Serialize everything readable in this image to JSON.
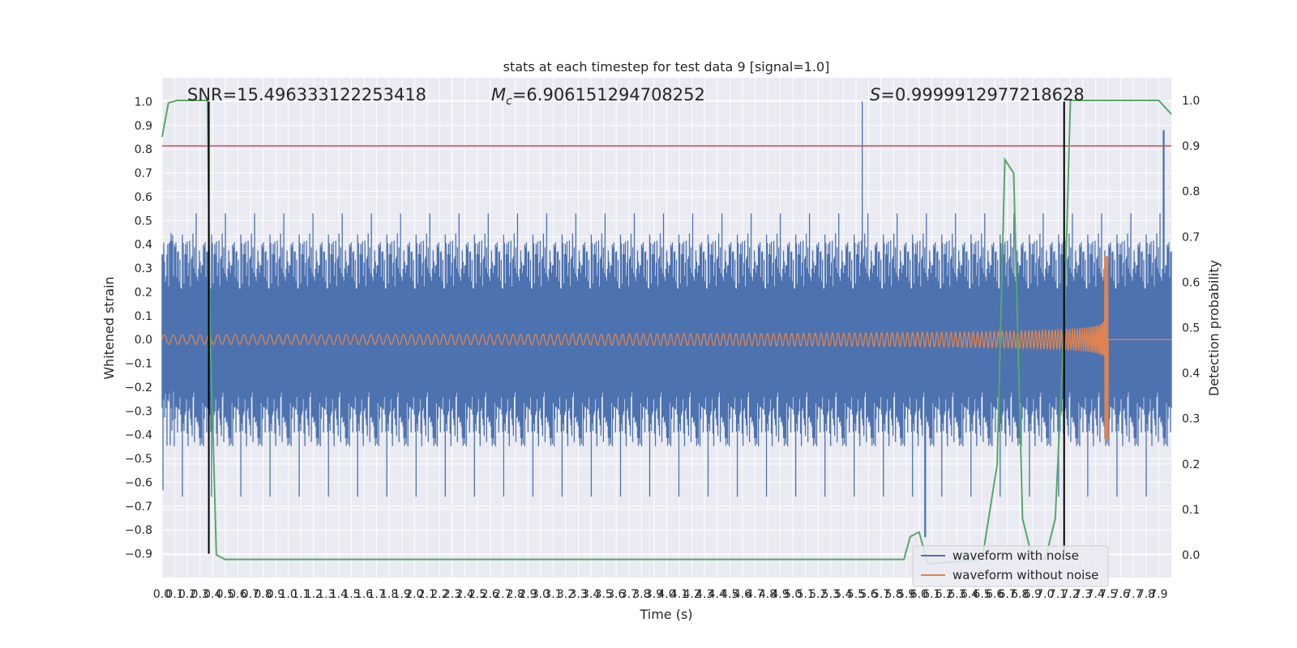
{
  "chart_data": {
    "type": "line",
    "title": "stats at each timestep for test data 9 [signal=1.0]",
    "xlabel": "Time (s)",
    "ylabel": "Whitened strain",
    "y2label": "Detection probability",
    "xlim": [
      0,
      8
    ],
    "ylim": [
      -1.0,
      1.1
    ],
    "y2lim": [
      -0.05,
      1.05
    ],
    "grid": true,
    "legend_position": "lower-right",
    "annotations": {
      "snr": "SNR=15.496333122253418",
      "mc_symbol": "M",
      "mc_sub": "c",
      "mc_value": "=6.906151294708252",
      "s_symbol": "S",
      "s_value": "=0.9999912977218628"
    },
    "threshold_line": {
      "y2": 0.9,
      "color": "#c44e52"
    },
    "vertical_markers": [
      0.37,
      7.15
    ],
    "series": [
      {
        "name": "waveform with noise",
        "color": "#4c72b0",
        "noise_band": [
          -0.45,
          0.45
        ],
        "peak_max": 1.0,
        "peak_min": -0.83
      },
      {
        "name": "waveform without noise",
        "color": "#dd8452",
        "chirp_start": 0.0,
        "chirp_merger": 7.5,
        "start_amplitude": 0.02,
        "peak_amplitude": 0.35,
        "min_at_merger": -0.42
      },
      {
        "color": "#55a868",
        "axis": "right",
        "x": [
          0.0,
          0.05,
          0.12,
          0.2,
          0.3,
          0.36,
          0.38,
          0.43,
          0.5,
          1.0,
          2.0,
          3.0,
          4.0,
          5.0,
          5.88,
          5.93,
          6.0,
          6.07,
          6.5,
          6.62,
          6.68,
          6.75,
          6.82,
          6.9,
          7.0,
          7.08,
          7.15,
          7.2,
          7.5,
          7.9,
          8.0
        ],
        "y": [
          0.92,
          0.995,
          1.0,
          1.0,
          1.0,
          1.0,
          0.5,
          0.0,
          -0.01,
          -0.01,
          -0.01,
          -0.01,
          -0.01,
          -0.01,
          -0.01,
          0.04,
          0.05,
          -0.02,
          -0.01,
          0.2,
          0.87,
          0.84,
          0.08,
          -0.01,
          -0.01,
          0.08,
          0.5,
          1.0,
          1.0,
          1.0,
          0.97
        ]
      }
    ],
    "x_ticks": [
      "0.0",
      "0.1",
      "0.2",
      "0.3",
      "0.4",
      "0.5",
      "0.6",
      "0.7",
      "0.8",
      "0.9",
      "1.0",
      "1.1",
      "1.2",
      "1.3",
      "1.4",
      "1.5",
      "1.6",
      "1.7",
      "1.8",
      "1.9",
      "2.0",
      "2.1",
      "2.2",
      "2.3",
      "2.4",
      "2.5",
      "2.6",
      "2.7",
      "2.8",
      "2.9",
      "3.0",
      "3.1",
      "3.2",
      "3.3",
      "3.4",
      "3.5",
      "3.6",
      "3.7",
      "3.8",
      "3.9",
      "4.0",
      "4.1",
      "4.2",
      "4.3",
      "4.4",
      "4.5",
      "4.6",
      "4.7",
      "4.8",
      "4.9",
      "5.0",
      "5.1",
      "5.2",
      "5.3",
      "5.4",
      "5.5",
      "5.6",
      "5.7",
      "5.8",
      "5.9",
      "6.0",
      "6.1",
      "6.2",
      "6.3",
      "6.4",
      "6.5",
      "6.6",
      "6.7",
      "6.8",
      "6.9",
      "7.0",
      "7.1",
      "7.2",
      "7.3",
      "7.4",
      "7.5",
      "7.6",
      "7.7",
      "7.8",
      "7.9"
    ],
    "y_ticks": [
      "-0.9",
      "-0.8",
      "-0.7",
      "-0.6",
      "-0.5",
      "-0.4",
      "-0.3",
      "-0.2",
      "-0.1",
      "0.0",
      "0.1",
      "0.2",
      "0.3",
      "0.4",
      "0.5",
      "0.6",
      "0.7",
      "0.8",
      "0.9",
      "1.0"
    ],
    "y2_ticks": [
      "0.0",
      "0.1",
      "0.2",
      "0.3",
      "0.4",
      "0.5",
      "0.6",
      "0.7",
      "0.8",
      "0.9",
      "1.0"
    ],
    "legend": [
      {
        "label": "waveform with noise",
        "color": "#4c72b0"
      },
      {
        "label": "waveform without noise",
        "color": "#dd8452"
      }
    ]
  }
}
